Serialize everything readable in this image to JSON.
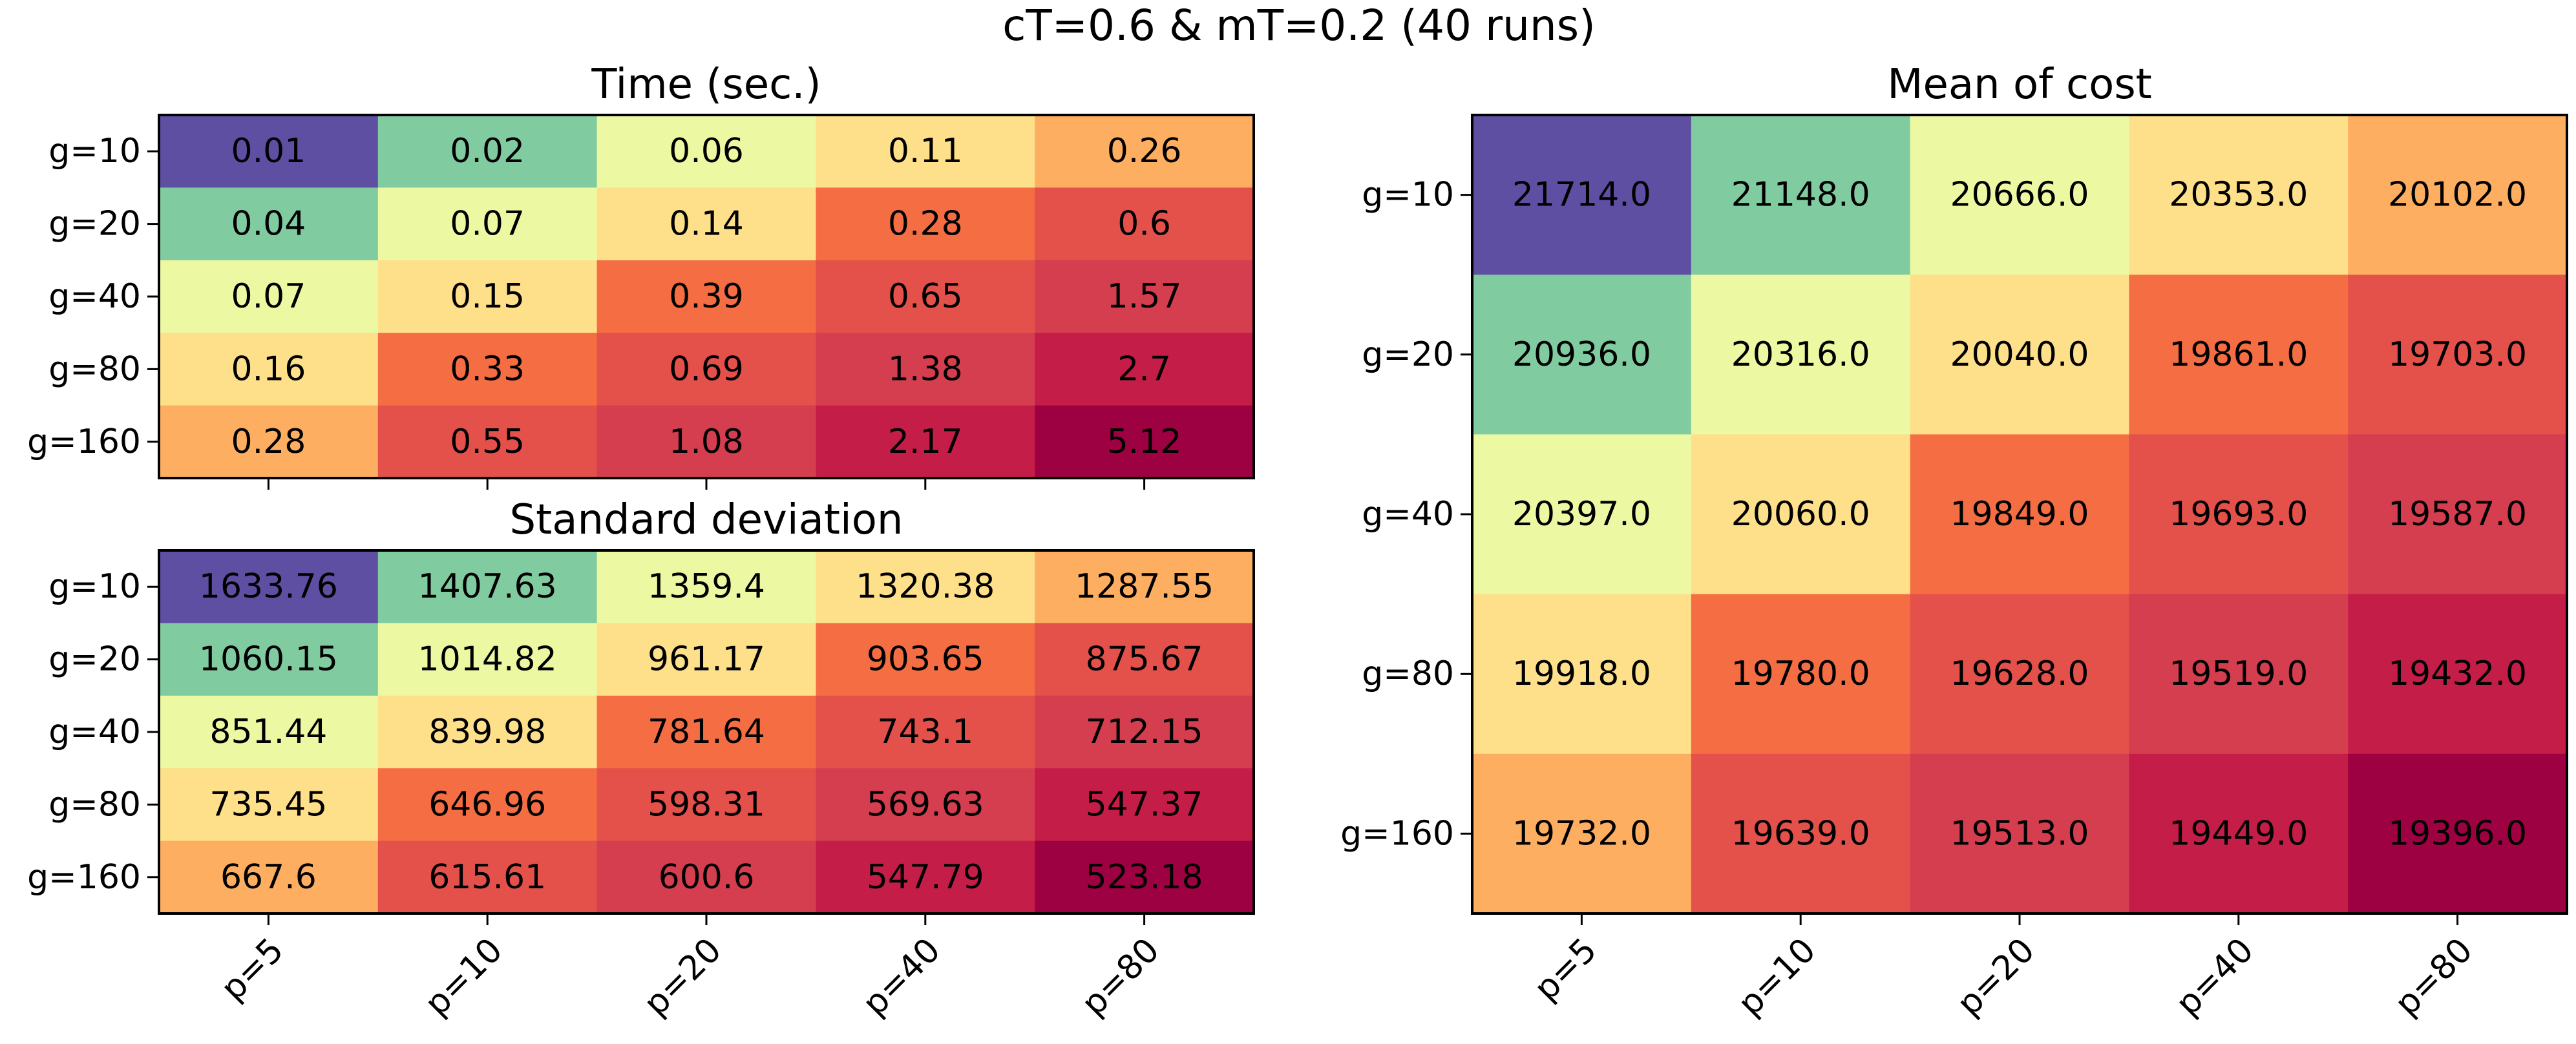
{
  "suptitle": "cT=0.6 & mT=0.2 (40 runs)",
  "chart_data": [
    {
      "type": "heatmap",
      "title": "Time (sec.)",
      "rows": [
        "g=10",
        "g=20",
        "g=40",
        "g=80",
        "g=160"
      ],
      "cols": [
        "p=5",
        "p=10",
        "p=20",
        "p=40",
        "p=80"
      ],
      "values": [
        [
          "0.01",
          "0.02",
          "0.06",
          "0.11",
          "0.26"
        ],
        [
          "0.04",
          "0.07",
          "0.14",
          "0.28",
          "0.6"
        ],
        [
          "0.07",
          "0.15",
          "0.39",
          "0.65",
          "1.57"
        ],
        [
          "0.16",
          "0.33",
          "0.69",
          "1.38",
          "2.7"
        ],
        [
          "0.28",
          "0.55",
          "1.08",
          "2.17",
          "5.12"
        ]
      ],
      "colormap": "Spectral_r",
      "colorscale": "rank",
      "show_col_labels": false
    },
    {
      "type": "heatmap",
      "title": "Standard deviation",
      "rows": [
        "g=10",
        "g=20",
        "g=40",
        "g=80",
        "g=160"
      ],
      "cols": [
        "p=5",
        "p=10",
        "p=20",
        "p=40",
        "p=80"
      ],
      "values": [
        [
          "1633.76",
          "1407.63",
          "1359.4",
          "1320.38",
          "1287.55"
        ],
        [
          "1060.15",
          "1014.82",
          "961.17",
          "903.65",
          "875.67"
        ],
        [
          "851.44",
          "839.98",
          "781.64",
          "743.1",
          "712.15"
        ],
        [
          "735.45",
          "646.96",
          "598.31",
          "569.63",
          "547.37"
        ],
        [
          "667.6",
          "615.61",
          "600.6",
          "547.79",
          "523.18"
        ]
      ],
      "colormap": "Spectral_r",
      "colorscale": "rank_reversed",
      "show_col_labels": true
    },
    {
      "type": "heatmap",
      "title": "Mean of cost",
      "rows": [
        "g=10",
        "g=20",
        "g=40",
        "g=80",
        "g=160"
      ],
      "cols": [
        "p=5",
        "p=10",
        "p=20",
        "p=40",
        "p=80"
      ],
      "values": [
        [
          "21714.0",
          "21148.0",
          "20666.0",
          "20353.0",
          "20102.0"
        ],
        [
          "20936.0",
          "20316.0",
          "20040.0",
          "19861.0",
          "19703.0"
        ],
        [
          "20397.0",
          "20060.0",
          "19849.0",
          "19693.0",
          "19587.0"
        ],
        [
          "19918.0",
          "19780.0",
          "19628.0",
          "19519.0",
          "19432.0"
        ],
        [
          "19732.0",
          "19639.0",
          "19513.0",
          "19449.0",
          "19396.0"
        ]
      ],
      "colormap": "Spectral_r",
      "colorscale": "rank_reversed",
      "show_col_labels": true
    }
  ]
}
